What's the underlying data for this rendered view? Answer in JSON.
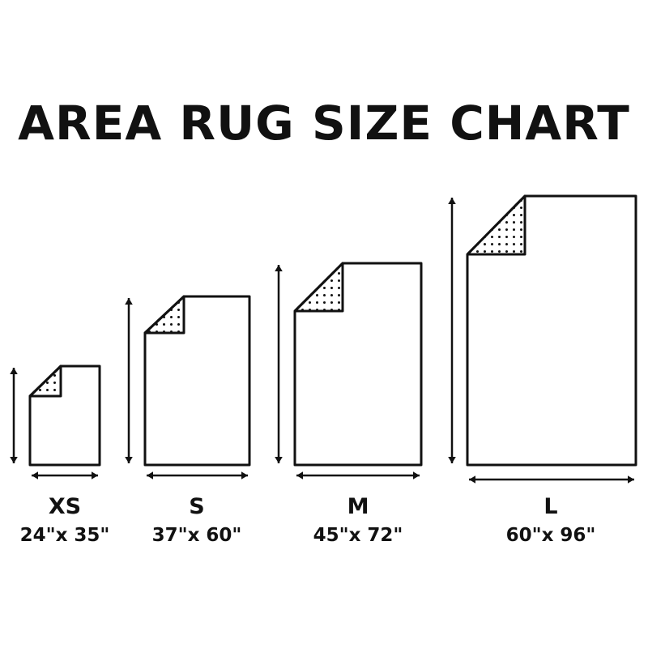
{
  "title": "AREA RUG SIZE CHART",
  "line_color": "#111111",
  "rugs": [
    {
      "size": "XS",
      "dimensions": "24\"x 35\"",
      "width_in": 24,
      "length_in": 35
    },
    {
      "size": "S",
      "dimensions": "37\"x 60\"",
      "width_in": 37,
      "length_in": 60
    },
    {
      "size": "M",
      "dimensions": "45\"x 72\"",
      "width_in": 45,
      "length_in": 72
    },
    {
      "size": "L",
      "dimensions": "60\"x 96\"",
      "width_in": 60,
      "length_in": 96
    }
  ]
}
